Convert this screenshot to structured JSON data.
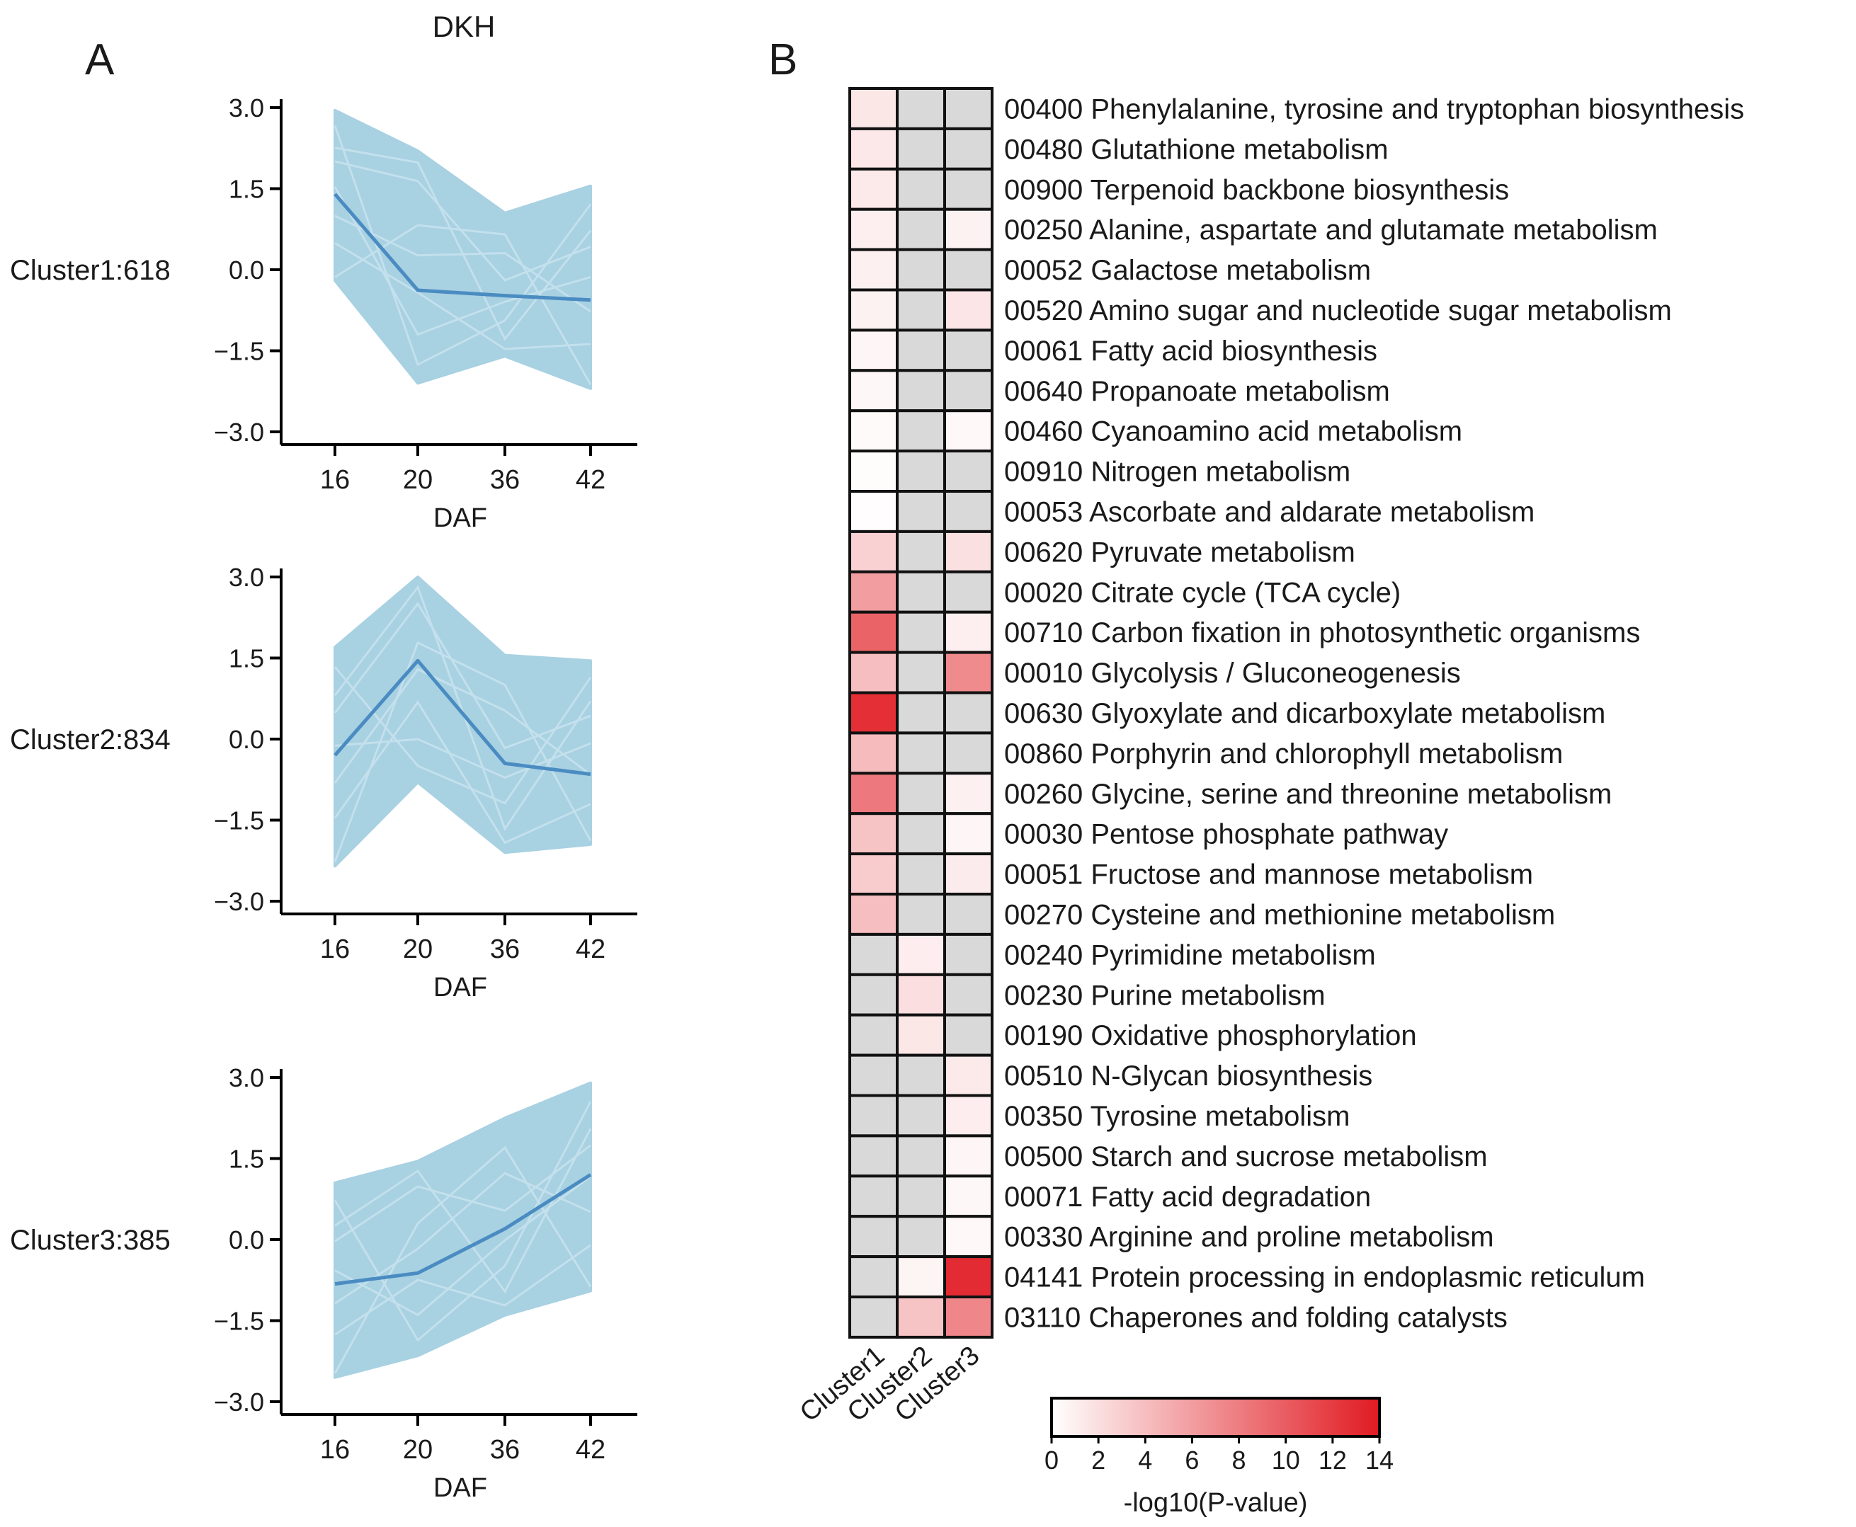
{
  "figure_title": "DKH",
  "panel_a_label": "A",
  "panel_b_label": "B",
  "chart_data": [
    {
      "type": "line",
      "panel": "A",
      "name": "Cluster1:618",
      "x": [
        "16",
        "20",
        "36",
        "42"
      ],
      "xlabel": "DAF",
      "ylim": [
        -3.0,
        3.0
      ],
      "yticks": [
        "3.0",
        "1.5",
        "0.0",
        "−1.5",
        "−3.0"
      ],
      "ytick_values": [
        3.0,
        1.5,
        0.0,
        -1.5,
        -3.0
      ],
      "mean_profile": [
        1.4,
        -0.38,
        -0.48,
        -0.56
      ],
      "envelope_upper": [
        2.95,
        2.2,
        1.05,
        1.55
      ],
      "envelope_lower": [
        -0.2,
        -2.1,
        -1.6,
        -2.2
      ],
      "line_color": "#4a8cc2",
      "fill_color": "#a8d1e2"
    },
    {
      "type": "line",
      "panel": "A",
      "name": "Cluster2:834",
      "x": [
        "16",
        "20",
        "36",
        "42"
      ],
      "xlabel": "DAF",
      "ylim": [
        -3.0,
        3.0
      ],
      "yticks": [
        "3.0",
        "1.5",
        "0.0",
        "−1.5",
        "−3.0"
      ],
      "ytick_values": [
        3.0,
        1.5,
        0.0,
        -1.5,
        -3.0
      ],
      "mean_profile": [
        -0.3,
        1.45,
        -0.45,
        -0.65
      ],
      "envelope_upper": [
        1.7,
        3.0,
        1.55,
        1.45
      ],
      "envelope_lower": [
        -2.35,
        -0.8,
        -2.1,
        -1.95
      ],
      "line_color": "#4a8cc2",
      "fill_color": "#a8d1e2"
    },
    {
      "type": "line",
      "panel": "A",
      "name": "Cluster3:385",
      "x": [
        "16",
        "20",
        "36",
        "42"
      ],
      "xlabel": "DAF",
      "ylim": [
        -3.0,
        3.0
      ],
      "yticks": [
        "3.0",
        "1.5",
        "0.0",
        "−1.5",
        "−3.0"
      ],
      "ytick_values": [
        3.0,
        1.5,
        0.0,
        -1.5,
        -3.0
      ],
      "mean_profile": [
        -0.82,
        -0.62,
        0.2,
        1.2
      ],
      "envelope_upper": [
        1.05,
        1.45,
        2.25,
        2.9
      ],
      "envelope_lower": [
        -2.55,
        -2.15,
        -1.4,
        -0.95
      ],
      "line_color": "#4a8cc2",
      "fill_color": "#a8d1e2"
    },
    {
      "type": "heatmap",
      "panel": "B",
      "columns": [
        "Cluster1",
        "Cluster2",
        "Cluster3"
      ],
      "rows": [
        "00400 Phenylalanine, tyrosine and tryptophan biosynthesis",
        "00480 Glutathione metabolism",
        "00900 Terpenoid backbone biosynthesis",
        "00250 Alanine, aspartate and glutamate metabolism",
        "00052 Galactose metabolism",
        "00520 Amino sugar and nucleotide sugar metabolism",
        "00061 Fatty acid biosynthesis",
        "00640 Propanoate metabolism",
        "00460 Cyanoamino acid metabolism",
        "00910 Nitrogen metabolism",
        "00053 Ascorbate and aldarate metabolism",
        "00620 Pyruvate metabolism",
        "00020 Citrate cycle (TCA cycle)",
        "00710 Carbon fixation in photosynthetic organisms",
        "00010 Glycolysis / Gluconeogenesis",
        "00630 Glyoxylate and dicarboxylate metabolism",
        "00860 Porphyrin and chlorophyll metabolism",
        "00260 Glycine, serine and threonine metabolism",
        "00030 Pentose phosphate pathway",
        "00051 Fructose and mannose metabolism",
        "00270 Cysteine and methionine metabolism",
        "00240 Pyrimidine metabolism",
        "00230 Purine metabolism",
        "00190 Oxidative phosphorylation",
        "00510 N-Glycan biosynthesis",
        "00350 Tyrosine metabolism",
        "00500 Starch and sucrose metabolism",
        "00071 Fatty acid degradation",
        "00330 Arginine and proline metabolism",
        "04141 Protein processing in endoplasmic reticulum",
        "03110 Chaperones and folding catalysts"
      ],
      "values": [
        [
          1.5,
          null,
          null
        ],
        [
          1.4,
          null,
          null
        ],
        [
          1.3,
          null,
          null
        ],
        [
          1.0,
          null,
          0.8
        ],
        [
          0.9,
          null,
          null
        ],
        [
          0.8,
          null,
          1.6
        ],
        [
          0.6,
          null,
          null
        ],
        [
          0.5,
          null,
          null
        ],
        [
          0.3,
          null,
          0.4
        ],
        [
          0.2,
          null,
          null
        ],
        [
          0.1,
          null,
          null
        ],
        [
          2.8,
          null,
          1.9
        ],
        [
          6.0,
          null,
          null
        ],
        [
          9.6,
          null,
          1.0
        ],
        [
          4.0,
          null,
          7.2
        ],
        [
          12.8,
          null,
          null
        ],
        [
          4.2,
          null,
          null
        ],
        [
          8.2,
          null,
          0.9
        ],
        [
          3.6,
          null,
          0.6
        ],
        [
          3.2,
          null,
          1.2
        ],
        [
          4.0,
          null,
          null
        ],
        [
          null,
          1.1,
          null
        ],
        [
          null,
          2.0,
          null
        ],
        [
          null,
          1.5,
          null
        ],
        [
          null,
          null,
          1.3
        ],
        [
          null,
          null,
          1.1
        ],
        [
          null,
          null,
          0.6
        ],
        [
          null,
          null,
          0.5
        ],
        [
          null,
          null,
          0.4
        ],
        [
          null,
          0.7,
          13.0
        ],
        [
          null,
          3.6,
          7.4
        ]
      ],
      "missing_color": "#d9d9d9",
      "colorbar": {
        "label": "-log10(P-value)",
        "ticks": [
          "0",
          "2",
          "4",
          "6",
          "8",
          "10",
          "12",
          "14"
        ],
        "min": 0,
        "max": 14,
        "low_color": "#ffffff",
        "high_color": "#e01b22"
      }
    }
  ]
}
